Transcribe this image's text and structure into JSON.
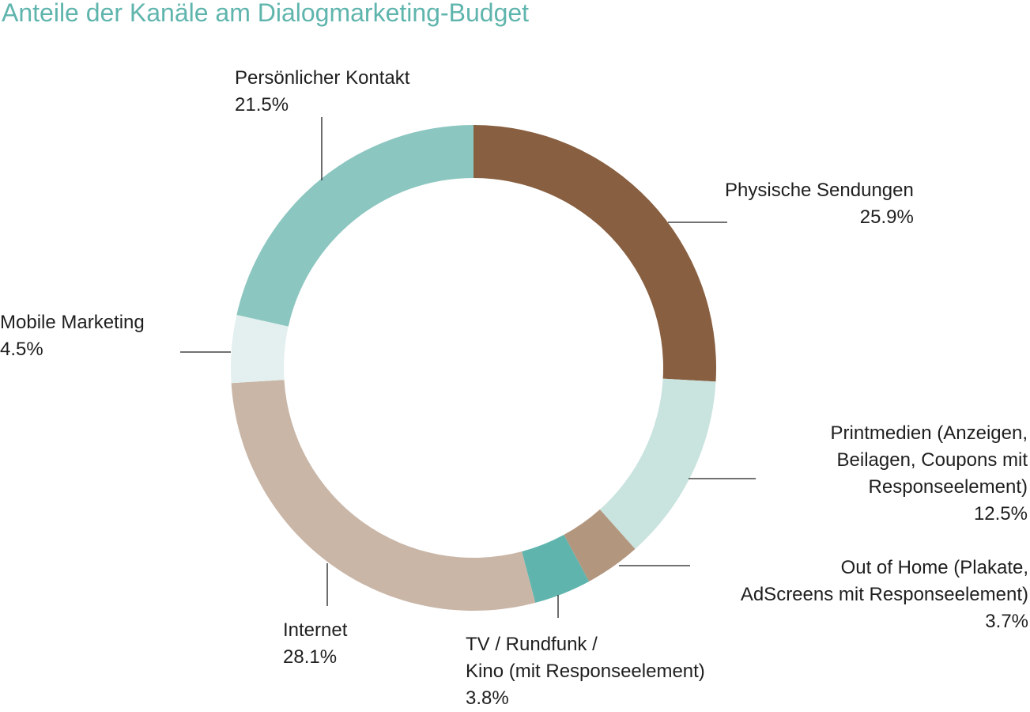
{
  "chart_data": {
    "type": "pie",
    "variant": "donut",
    "title": "Anteile der Kanäle am Dialogmarketing-Budget",
    "unit": "%",
    "legend": "none",
    "slices": [
      {
        "label": "Physische Sendungen",
        "value": 25.9,
        "value_text": "25.9%",
        "color": "#885f40"
      },
      {
        "label": "Printmedien (Anzeigen, Beilagen, Coupons mit Responseelement)",
        "value": 12.5,
        "value_text": "12.5%",
        "color": "#c9e3df"
      },
      {
        "label": "Out of Home (Plakate, AdScreens mit Responseelement)",
        "value": 3.7,
        "value_text": "3.7%",
        "color": "#b3967e"
      },
      {
        "label": "TV / Rundfunk / Kino (mit Responseelement)",
        "value": 3.8,
        "value_text": "3.8%",
        "color": "#5fb5ad"
      },
      {
        "label": "Internet",
        "value": 28.1,
        "value_text": "28.1%",
        "color": "#c9b6a7"
      },
      {
        "label": "Mobile Marketing",
        "value": 4.5,
        "value_text": "4.5%",
        "color": "#e3f0ef"
      },
      {
        "label": "Persönlicher Kontakt",
        "value": 21.5,
        "value_text": "21.5%",
        "color": "#8cc6c0"
      }
    ]
  },
  "labels": {
    "physische": {
      "line1": "Physische Sendungen",
      "value": "25.9%"
    },
    "print": {
      "line1": "Printmedien (Anzeigen,",
      "line2": "Beilagen, Coupons mit",
      "line3": "Responseelement)",
      "value": "12.5%"
    },
    "ooh": {
      "line1": "Out of Home (Plakate,",
      "line2": "AdScreens mit Responseelement)",
      "value": "3.7%"
    },
    "tv": {
      "line1": "TV / Rundfunk /",
      "line2": "Kino (mit Responseelement)",
      "value": "3.8%"
    },
    "internet": {
      "line1": "Internet",
      "value": "28.1%"
    },
    "mobile": {
      "line1": "Mobile Marketing",
      "value": "4.5%"
    },
    "persoenlich": {
      "line1": "Persönlicher Kontakt",
      "value": "21.5%"
    }
  }
}
